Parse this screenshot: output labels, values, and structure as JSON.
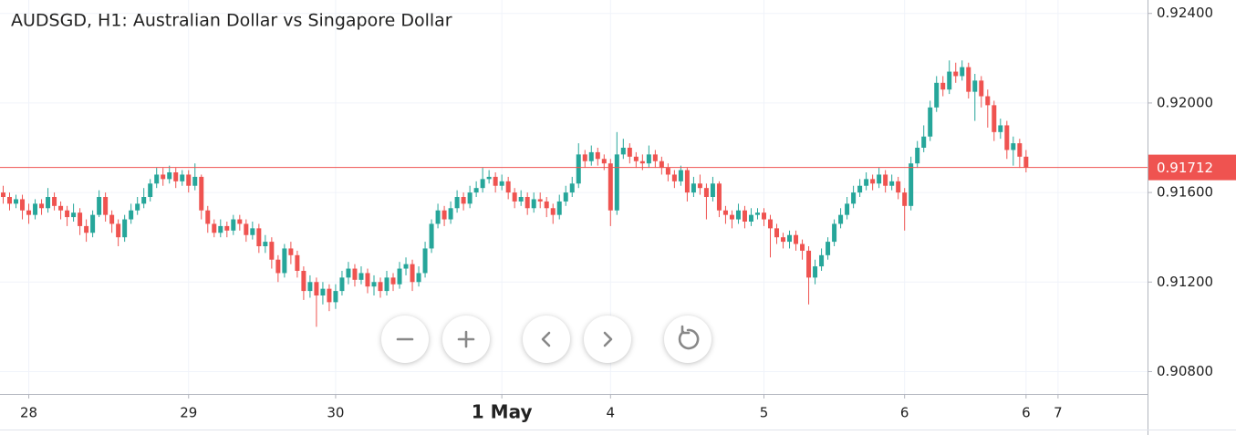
{
  "chart_data": {
    "type": "candlestick",
    "title": "AUDSGD, H1: Australian Dollar vs Singapore Dollar",
    "up_color": "#26a69a",
    "down_color": "#ef5350",
    "last_price_color": "#ef5350",
    "grid": true,
    "xlim": [
      -0.5,
      179
    ],
    "ylim": [
      0.907,
      0.9246
    ],
    "yticks": [
      {
        "value": 0.924,
        "label": "0.92400"
      },
      {
        "value": 0.92,
        "label": "0.92000"
      },
      {
        "value": 0.916,
        "label": "0.91600"
      },
      {
        "value": 0.912,
        "label": "0.91200"
      },
      {
        "value": 0.908,
        "label": "0.90800"
      }
    ],
    "xticks": [
      {
        "value": 4,
        "label": "28"
      },
      {
        "value": 29,
        "label": "29"
      },
      {
        "value": 52,
        "label": "30"
      },
      {
        "value": 78,
        "label": "1 May"
      },
      {
        "value": 95,
        "label": "4"
      },
      {
        "value": 119,
        "label": "5"
      },
      {
        "value": 141,
        "label": "6"
      },
      {
        "value": 160,
        "label": "6"
      },
      {
        "value": 165,
        "label": "7"
      }
    ],
    "last_price": 0.91712,
    "open": [
      0.916,
      0.9158,
      0.9155,
      0.9157,
      0.9152,
      0.915,
      0.9155,
      0.9153,
      0.9158,
      0.9154,
      0.9152,
      0.9149,
      0.9151,
      0.9145,
      0.9142,
      0.915,
      0.9158,
      0.915,
      0.9146,
      0.914,
      0.9148,
      0.9152,
      0.9155,
      0.9158,
      0.9164,
      0.9168,
      0.9166,
      0.9169,
      0.9165,
      0.9168,
      0.9163,
      0.9167,
      0.9152,
      0.9146,
      0.9142,
      0.9145,
      0.9143,
      0.9148,
      0.9146,
      0.9141,
      0.9144,
      0.9136,
      0.9138,
      0.913,
      0.9124,
      0.9135,
      0.9132,
      0.9125,
      0.9116,
      0.912,
      0.9114,
      0.9117,
      0.9111,
      0.9116,
      0.9122,
      0.9126,
      0.9121,
      0.9124,
      0.9118,
      0.912,
      0.9116,
      0.9122,
      0.9119,
      0.9126,
      0.9128,
      0.912,
      0.9124,
      0.9135,
      0.9146,
      0.9152,
      0.9148,
      0.9153,
      0.9158,
      0.9155,
      0.916,
      0.9162,
      0.9166,
      0.9167,
      0.9163,
      0.9165,
      0.916,
      0.9156,
      0.9158,
      0.9153,
      0.9157,
      0.9156,
      0.9153,
      0.915,
      0.9156,
      0.916,
      0.9164,
      0.9177,
      0.9174,
      0.9178,
      0.9175,
      0.9173,
      0.9152,
      0.9177,
      0.918,
      0.9176,
      0.9174,
      0.9173,
      0.9177,
      0.9174,
      0.9171,
      0.9168,
      0.9165,
      0.917,
      0.916,
      0.9164,
      0.9162,
      0.9158,
      0.9164,
      0.9152,
      0.915,
      0.9148,
      0.9152,
      0.9147,
      0.915,
      0.9151,
      0.9148,
      0.9144,
      0.914,
      0.9138,
      0.9141,
      0.9137,
      0.9134,
      0.9122,
      0.9127,
      0.9132,
      0.9138,
      0.9146,
      0.915,
      0.9155,
      0.916,
      0.9163,
      0.9166,
      0.9164,
      0.9168,
      0.9163,
      0.9165,
      0.916,
      0.9154,
      0.9173,
      0.918,
      0.9185,
      0.9198,
      0.9209,
      0.9206,
      0.9214,
      0.9212,
      0.9216,
      0.9205,
      0.921,
      0.9203,
      0.9199,
      0.9187,
      0.919,
      0.9179,
      0.9182,
      0.9176
    ],
    "high": [
      0.9163,
      0.916,
      0.9159,
      0.9159,
      0.9155,
      0.9157,
      0.9157,
      0.9162,
      0.916,
      0.9156,
      0.9154,
      0.9155,
      0.9153,
      0.9148,
      0.9152,
      0.9161,
      0.916,
      0.9152,
      0.9148,
      0.915,
      0.9155,
      0.9158,
      0.9162,
      0.9166,
      0.9171,
      0.9171,
      0.9172,
      0.9171,
      0.917,
      0.917,
      0.9173,
      0.9168,
      0.9154,
      0.9148,
      0.9148,
      0.9147,
      0.915,
      0.915,
      0.9148,
      0.9147,
      0.9146,
      0.9141,
      0.914,
      0.9132,
      0.9137,
      0.9138,
      0.9134,
      0.9127,
      0.9123,
      0.9122,
      0.912,
      0.9119,
      0.9119,
      0.9125,
      0.9129,
      0.9128,
      0.9127,
      0.9126,
      0.9123,
      0.9122,
      0.9125,
      0.9124,
      0.9129,
      0.9131,
      0.913,
      0.9127,
      0.9138,
      0.9148,
      0.9155,
      0.9154,
      0.9156,
      0.9161,
      0.916,
      0.9163,
      0.9165,
      0.9171,
      0.917,
      0.9169,
      0.9168,
      0.9167,
      0.9162,
      0.9161,
      0.916,
      0.916,
      0.916,
      0.9158,
      0.9155,
      0.9159,
      0.9163,
      0.9167,
      0.9182,
      0.9179,
      0.9181,
      0.918,
      0.9177,
      0.9175,
      0.9187,
      0.9184,
      0.9182,
      0.9178,
      0.9177,
      0.9181,
      0.9179,
      0.9176,
      0.9173,
      0.917,
      0.9172,
      0.9171,
      0.9167,
      0.9168,
      0.9164,
      0.9167,
      0.9165,
      0.9154,
      0.9152,
      0.9155,
      0.9154,
      0.9153,
      0.9153,
      0.9153,
      0.915,
      0.9146,
      0.9142,
      0.9143,
      0.9143,
      0.9139,
      0.9136,
      0.913,
      0.9135,
      0.914,
      0.9148,
      0.9153,
      0.9158,
      0.9163,
      0.9166,
      0.9169,
      0.9168,
      0.9171,
      0.917,
      0.9168,
      0.9167,
      0.9162,
      0.9176,
      0.9183,
      0.919,
      0.9201,
      0.9212,
      0.9212,
      0.9219,
      0.9218,
      0.9219,
      0.9218,
      0.9213,
      0.9212,
      0.9206,
      0.9201,
      0.9193,
      0.9192,
      0.9185,
      0.9184,
      0.9179
    ],
    "low": [
      0.9155,
      0.9152,
      0.9153,
      0.9148,
      0.9146,
      0.9148,
      0.915,
      0.9151,
      0.9152,
      0.9148,
      0.9145,
      0.9147,
      0.9141,
      0.9138,
      0.914,
      0.9149,
      0.9147,
      0.9142,
      0.9136,
      0.9138,
      0.9146,
      0.915,
      0.9153,
      0.9156,
      0.9162,
      0.9163,
      0.9164,
      0.9162,
      0.9163,
      0.916,
      0.9161,
      0.9148,
      0.9142,
      0.914,
      0.914,
      0.914,
      0.9141,
      0.9143,
      0.9138,
      0.9139,
      0.9133,
      0.9133,
      0.9126,
      0.912,
      0.9122,
      0.9128,
      0.9122,
      0.9112,
      0.9113,
      0.91,
      0.911,
      0.9107,
      0.9108,
      0.9114,
      0.9119,
      0.9118,
      0.9119,
      0.9115,
      0.9114,
      0.9113,
      0.9114,
      0.9116,
      0.9117,
      0.9123,
      0.9116,
      0.9118,
      0.9122,
      0.9133,
      0.9144,
      0.9145,
      0.9146,
      0.9151,
      0.9152,
      0.9153,
      0.9158,
      0.916,
      0.9164,
      0.916,
      0.9161,
      0.9157,
      0.9153,
      0.9154,
      0.915,
      0.9151,
      0.9153,
      0.9149,
      0.9146,
      0.9148,
      0.9154,
      0.9158,
      0.9162,
      0.9171,
      0.9172,
      0.9172,
      0.917,
      0.9145,
      0.915,
      0.9175,
      0.9173,
      0.9171,
      0.917,
      0.9171,
      0.9171,
      0.9168,
      0.9165,
      0.9162,
      0.9163,
      0.9156,
      0.9158,
      0.9159,
      0.9148,
      0.9156,
      0.9149,
      0.9146,
      0.9144,
      0.9146,
      0.9144,
      0.9145,
      0.9148,
      0.9145,
      0.9131,
      0.9137,
      0.9135,
      0.9135,
      0.9134,
      0.913,
      0.911,
      0.9119,
      0.9125,
      0.913,
      0.9136,
      0.9144,
      0.9148,
      0.9153,
      0.9158,
      0.9161,
      0.9161,
      0.9162,
      0.916,
      0.9161,
      0.9157,
      0.9143,
      0.9152,
      0.9171,
      0.9178,
      0.9183,
      0.9196,
      0.9203,
      0.9204,
      0.9209,
      0.921,
      0.9202,
      0.9192,
      0.9198,
      0.9189,
      0.9183,
      0.9184,
      0.9175,
      0.9172,
      0.9171,
      0.9169
    ],
    "close": [
      0.9158,
      0.9155,
      0.9157,
      0.9152,
      0.915,
      0.9155,
      0.9153,
      0.9158,
      0.9154,
      0.9152,
      0.9149,
      0.9151,
      0.9145,
      0.9142,
      0.915,
      0.9158,
      0.915,
      0.9146,
      0.914,
      0.9148,
      0.9152,
      0.9155,
      0.9158,
      0.9164,
      0.9168,
      0.9166,
      0.9169,
      0.9165,
      0.9168,
      0.9163,
      0.9167,
      0.9152,
      0.9146,
      0.9142,
      0.9145,
      0.9143,
      0.9148,
      0.9146,
      0.9141,
      0.9144,
      0.9136,
      0.9138,
      0.913,
      0.9124,
      0.9135,
      0.9132,
      0.9125,
      0.9116,
      0.912,
      0.9114,
      0.9117,
      0.9111,
      0.9116,
      0.9122,
      0.9126,
      0.9121,
      0.9124,
      0.9118,
      0.912,
      0.9116,
      0.9122,
      0.9119,
      0.9126,
      0.9128,
      0.912,
      0.9124,
      0.9135,
      0.9146,
      0.9152,
      0.9148,
      0.9153,
      0.9158,
      0.9155,
      0.916,
      0.9162,
      0.9166,
      0.9167,
      0.9163,
      0.9165,
      0.916,
      0.9156,
      0.9158,
      0.9153,
      0.9157,
      0.9156,
      0.9153,
      0.915,
      0.9156,
      0.916,
      0.9164,
      0.9177,
      0.9174,
      0.9178,
      0.9175,
      0.9173,
      0.9152,
      0.9177,
      0.918,
      0.9176,
      0.9174,
      0.9173,
      0.9177,
      0.9174,
      0.9171,
      0.9168,
      0.9165,
      0.917,
      0.916,
      0.9164,
      0.9162,
      0.9158,
      0.9164,
      0.9152,
      0.915,
      0.9148,
      0.9152,
      0.9147,
      0.915,
      0.9151,
      0.9148,
      0.9144,
      0.914,
      0.9138,
      0.9141,
      0.9137,
      0.9134,
      0.9122,
      0.9127,
      0.9132,
      0.9138,
      0.9146,
      0.915,
      0.9155,
      0.916,
      0.9163,
      0.9166,
      0.9164,
      0.9168,
      0.9163,
      0.9165,
      0.916,
      0.9154,
      0.9173,
      0.918,
      0.9185,
      0.9198,
      0.9209,
      0.9206,
      0.9214,
      0.9212,
      0.9216,
      0.9205,
      0.921,
      0.9203,
      0.9199,
      0.9187,
      0.919,
      0.9179,
      0.9182,
      0.9176,
      0.91712
    ]
  }
}
